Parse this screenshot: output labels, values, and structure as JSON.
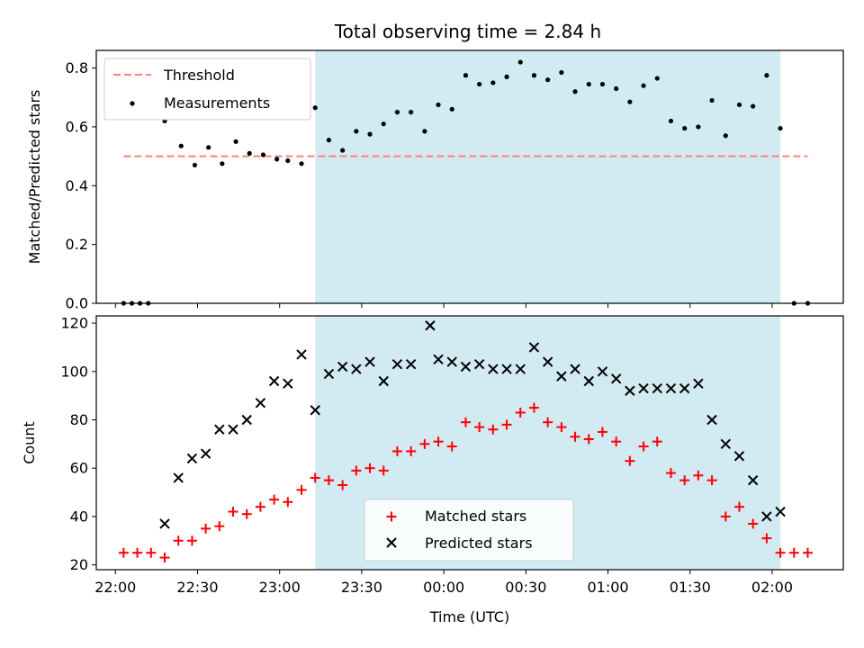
{
  "chart_data": {
    "title": "Total observing time = 2.84 h",
    "shaded_window": {
      "start": "23:13",
      "end": "02:03",
      "color": "#add8e6"
    },
    "x_axis": {
      "label": "Time (UTC)",
      "range": [
        "21:53",
        "02:26"
      ],
      "tick_labels": [
        "22:00",
        "22:30",
        "23:00",
        "23:30",
        "00:00",
        "00:30",
        "01:00",
        "01:30",
        "02:00"
      ]
    },
    "panels": [
      {
        "type": "scatter",
        "ylabel": "Matched/Predicted stars",
        "ylim": [
          0,
          0.86
        ],
        "yticks": [
          "0.0",
          "0.2",
          "0.4",
          "0.6",
          "0.8"
        ],
        "threshold": {
          "name": "Threshold",
          "value": 0.5,
          "from": "22:03",
          "to": "02:13",
          "color": "#ff7f7f"
        },
        "series": [
          {
            "name": "Measurements",
            "marker": "dot",
            "color": "#000000",
            "points": [
              [
                "22:03",
                0.0
              ],
              [
                "22:06",
                0.0
              ],
              [
                "22:09",
                0.0
              ],
              [
                "22:12",
                0.0
              ],
              [
                "22:18",
                0.62
              ],
              [
                "22:24",
                0.535
              ],
              [
                "22:29",
                0.47
              ],
              [
                "22:34",
                0.53
              ],
              [
                "22:39",
                0.475
              ],
              [
                "22:44",
                0.55
              ],
              [
                "22:49",
                0.51
              ],
              [
                "22:54",
                0.505
              ],
              [
                "22:59",
                0.49
              ],
              [
                "23:03",
                0.485
              ],
              [
                "23:08",
                0.475
              ],
              [
                "23:13",
                0.665
              ],
              [
                "23:18",
                0.555
              ],
              [
                "23:23",
                0.52
              ],
              [
                "23:28",
                0.585
              ],
              [
                "23:33",
                0.575
              ],
              [
                "23:38",
                0.61
              ],
              [
                "23:43",
                0.65
              ],
              [
                "23:48",
                0.65
              ],
              [
                "23:53",
                0.585
              ],
              [
                "23:58",
                0.675
              ],
              [
                "00:03",
                0.66
              ],
              [
                "00:08",
                0.775
              ],
              [
                "00:13",
                0.745
              ],
              [
                "00:18",
                0.75
              ],
              [
                "00:23",
                0.77
              ],
              [
                "00:28",
                0.82
              ],
              [
                "00:33",
                0.775
              ],
              [
                "00:38",
                0.76
              ],
              [
                "00:43",
                0.785
              ],
              [
                "00:48",
                0.72
              ],
              [
                "00:53",
                0.745
              ],
              [
                "00:58",
                0.745
              ],
              [
                "01:03",
                0.73
              ],
              [
                "01:08",
                0.685
              ],
              [
                "01:13",
                0.74
              ],
              [
                "01:18",
                0.765
              ],
              [
                "01:23",
                0.62
              ],
              [
                "01:28",
                0.595
              ],
              [
                "01:33",
                0.6
              ],
              [
                "01:38",
                0.69
              ],
              [
                "01:43",
                0.57
              ],
              [
                "01:48",
                0.675
              ],
              [
                "01:53",
                0.67
              ],
              [
                "01:58",
                0.775
              ],
              [
                "02:03",
                0.595
              ],
              [
                "02:08",
                0.0
              ],
              [
                "02:13",
                0.0
              ]
            ]
          }
        ],
        "legend": {
          "placement": "upper-left",
          "entries": [
            "Threshold",
            "Measurements"
          ]
        }
      },
      {
        "type": "scatter",
        "ylabel": "Count",
        "ylim": [
          18,
          123
        ],
        "yticks": [
          "20",
          "40",
          "60",
          "80",
          "100",
          "120"
        ],
        "series": [
          {
            "name": "Matched stars",
            "marker": "plus",
            "color": "#ff0000",
            "points": [
              [
                "22:03",
                25
              ],
              [
                "22:08",
                25
              ],
              [
                "22:13",
                25
              ],
              [
                "22:18",
                23
              ],
              [
                "22:23",
                30
              ],
              [
                "22:28",
                30
              ],
              [
                "22:33",
                35
              ],
              [
                "22:38",
                36
              ],
              [
                "22:43",
                42
              ],
              [
                "22:48",
                41
              ],
              [
                "22:53",
                44
              ],
              [
                "22:58",
                47
              ],
              [
                "23:03",
                46
              ],
              [
                "23:08",
                51
              ],
              [
                "23:13",
                56
              ],
              [
                "23:18",
                55
              ],
              [
                "23:23",
                53
              ],
              [
                "23:28",
                59
              ],
              [
                "23:33",
                60
              ],
              [
                "23:38",
                59
              ],
              [
                "23:43",
                67
              ],
              [
                "23:48",
                67
              ],
              [
                "23:53",
                70
              ],
              [
                "23:58",
                71
              ],
              [
                "00:03",
                69
              ],
              [
                "00:08",
                79
              ],
              [
                "00:13",
                77
              ],
              [
                "00:18",
                76
              ],
              [
                "00:23",
                78
              ],
              [
                "00:28",
                83
              ],
              [
                "00:33",
                85
              ],
              [
                "00:38",
                79
              ],
              [
                "00:43",
                77
              ],
              [
                "00:48",
                73
              ],
              [
                "00:53",
                72
              ],
              [
                "00:58",
                75
              ],
              [
                "01:03",
                71
              ],
              [
                "01:08",
                63
              ],
              [
                "01:13",
                69
              ],
              [
                "01:18",
                71
              ],
              [
                "01:23",
                58
              ],
              [
                "01:28",
                55
              ],
              [
                "01:33",
                57
              ],
              [
                "01:38",
                55
              ],
              [
                "01:43",
                40
              ],
              [
                "01:48",
                44
              ],
              [
                "01:53",
                37
              ],
              [
                "01:58",
                31
              ],
              [
                "02:03",
                25
              ],
              [
                "02:08",
                25
              ],
              [
                "02:13",
                25
              ]
            ]
          },
          {
            "name": "Predicted stars",
            "marker": "x",
            "color": "#000000",
            "points": [
              [
                "22:18",
                37
              ],
              [
                "22:23",
                56
              ],
              [
                "22:28",
                64
              ],
              [
                "22:33",
                66
              ],
              [
                "22:38",
                76
              ],
              [
                "22:43",
                76
              ],
              [
                "22:48",
                80
              ],
              [
                "22:53",
                87
              ],
              [
                "22:58",
                96
              ],
              [
                "23:03",
                95
              ],
              [
                "23:08",
                107
              ],
              [
                "23:13",
                84
              ],
              [
                "23:18",
                99
              ],
              [
                "23:23",
                102
              ],
              [
                "23:28",
                101
              ],
              [
                "23:33",
                104
              ],
              [
                "23:38",
                96
              ],
              [
                "23:43",
                103
              ],
              [
                "23:48",
                103
              ],
              [
                "23:55",
                119
              ],
              [
                "23:58",
                105
              ],
              [
                "00:03",
                104
              ],
              [
                "00:08",
                102
              ],
              [
                "00:13",
                103
              ],
              [
                "00:18",
                101
              ],
              [
                "00:23",
                101
              ],
              [
                "00:28",
                101
              ],
              [
                "00:33",
                110
              ],
              [
                "00:38",
                104
              ],
              [
                "00:43",
                98
              ],
              [
                "00:48",
                101
              ],
              [
                "00:53",
                96
              ],
              [
                "00:58",
                100
              ],
              [
                "01:03",
                97
              ],
              [
                "01:08",
                92
              ],
              [
                "01:13",
                93
              ],
              [
                "01:18",
                93
              ],
              [
                "01:23",
                93
              ],
              [
                "01:28",
                93
              ],
              [
                "01:33",
                95
              ],
              [
                "01:38",
                80
              ],
              [
                "01:43",
                70
              ],
              [
                "01:48",
                65
              ],
              [
                "01:53",
                55
              ],
              [
                "01:58",
                40
              ],
              [
                "02:03",
                42
              ]
            ]
          }
        ],
        "legend": {
          "placement": "lower-center",
          "entries": [
            "Matched stars",
            "Predicted stars"
          ]
        }
      }
    ]
  }
}
